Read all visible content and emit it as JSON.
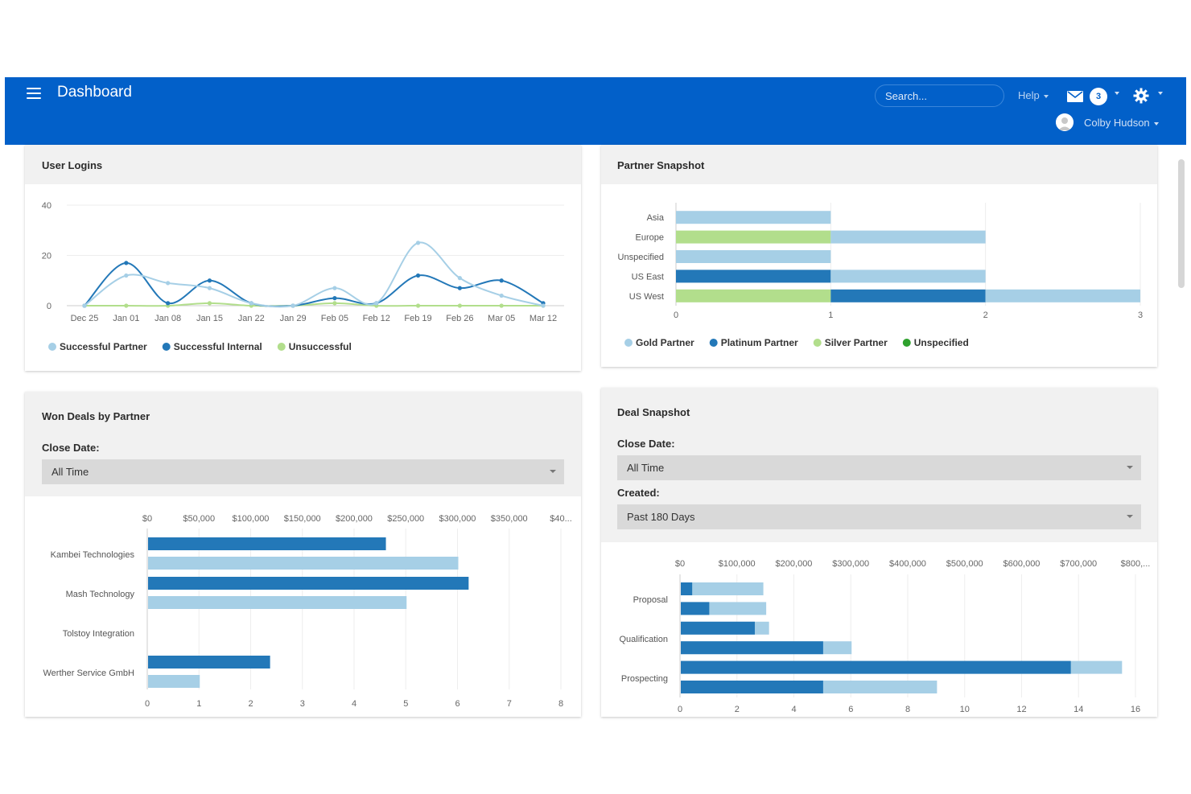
{
  "header": {
    "title": "Dashboard",
    "search_placeholder": "Search...",
    "help_label": "Help",
    "notification_count": "3",
    "user_name": "Colby Hudson"
  },
  "colors": {
    "brand": "#0260c9",
    "light_blue": "#a6cfe6",
    "dark_blue": "#2378b8",
    "light_green": "#b2de8c",
    "dark_green": "#2ea12d"
  },
  "user_logins": {
    "title": "User Logins",
    "chart_data": {
      "type": "line",
      "title": "User Logins",
      "x": [
        "Dec 25",
        "Jan 01",
        "Jan 08",
        "Jan 15",
        "Jan 22",
        "Jan 29",
        "Feb 05",
        "Feb 12",
        "Feb 19",
        "Feb 26",
        "Mar 05",
        "Mar 12"
      ],
      "yticks": [
        0,
        20,
        40
      ],
      "ylim": [
        0,
        40
      ],
      "grid": true,
      "legend": "bottom",
      "series": [
        {
          "name": "Successful Partner",
          "color": "#a6cfe6",
          "values": [
            0,
            12,
            9,
            7,
            1,
            0,
            7,
            1,
            25,
            11,
            4,
            0
          ]
        },
        {
          "name": "Successful Internal",
          "color": "#2378b8",
          "values": [
            0,
            17,
            1,
            10,
            1,
            0,
            3,
            1,
            12,
            7,
            10,
            1
          ]
        },
        {
          "name": "Unsuccessful",
          "color": "#b2de8c",
          "values": [
            0,
            0,
            0,
            1,
            0,
            0,
            1,
            0,
            0,
            0,
            0,
            0
          ]
        }
      ]
    }
  },
  "partner_snapshot": {
    "title": "Partner Snapshot",
    "chart_data": {
      "type": "bar",
      "orientation": "horizontal",
      "stacked": true,
      "title": "Partner Snapshot",
      "categories": [
        "Asia",
        "Europe",
        "Unspecified",
        "US East",
        "US West"
      ],
      "xticks": [
        0,
        1,
        2,
        3
      ],
      "xlim": [
        0,
        3
      ],
      "legend": "bottom",
      "series": [
        {
          "name": "Gold Partner",
          "color": "#a6cfe6",
          "values": [
            1,
            1,
            1,
            1,
            1
          ]
        },
        {
          "name": "Platinum Partner",
          "color": "#2378b8",
          "values": [
            0,
            0,
            0,
            1,
            1
          ]
        },
        {
          "name": "Silver Partner",
          "color": "#b2de8c",
          "values": [
            0,
            1,
            0,
            0,
            1
          ]
        },
        {
          "name": "Unspecified",
          "color": "#2ea12d",
          "values": [
            0,
            0,
            0,
            0,
            0
          ]
        }
      ],
      "stack_order": [
        "Silver Partner",
        "Platinum Partner",
        "Gold Partner",
        "Unspecified"
      ]
    }
  },
  "won_deals": {
    "title": "Won Deals by Partner",
    "close_date_label": "Close Date:",
    "close_date_value": "All Time",
    "chart_data": {
      "type": "bar",
      "orientation": "horizontal",
      "categories": [
        "Kambei Technologies",
        "Mash Technology",
        "Tolstoy Integration",
        "Werther Service GmbH"
      ],
      "top_axis_ticks": [
        "$0",
        "$50,000",
        "$100,000",
        "$150,000",
        "$200,000",
        "$250,000",
        "$300,000",
        "$350,000",
        "$40..."
      ],
      "top_axis_range": [
        0,
        400000
      ],
      "bottom_axis_ticks": [
        0,
        1,
        2,
        3,
        4,
        5,
        6,
        7,
        8
      ],
      "bottom_axis_range": [
        0,
        8
      ],
      "series": [
        {
          "color": "#2378b8",
          "axis": "top",
          "values": [
            230000,
            310000,
            0,
            118000
          ]
        },
        {
          "color": "#a6cfe6",
          "axis": "bottom",
          "values": [
            6,
            5,
            0,
            1
          ]
        }
      ]
    }
  },
  "deal_snapshot": {
    "title": "Deal Snapshot",
    "close_date_label": "Close Date:",
    "close_date_value": "All Time",
    "created_label": "Created:",
    "created_value": "Past 180 Days",
    "chart_data": {
      "type": "bar",
      "orientation": "horizontal",
      "categories": [
        "Proposal",
        "Qualification",
        "Prospecting"
      ],
      "top_axis_ticks": [
        "$0",
        "$100,000",
        "$200,000",
        "$300,000",
        "$400,000",
        "$500,000",
        "$600,000",
        "$700,000",
        "$800,..."
      ],
      "top_axis_range": [
        0,
        800000
      ],
      "bottom_axis_ticks": [
        0,
        2,
        4,
        6,
        8,
        10,
        12,
        14,
        16
      ],
      "bottom_axis_range": [
        0,
        16
      ],
      "rows": [
        {
          "category": "Proposal",
          "dark": 0.4,
          "light": 2.9
        },
        {
          "category": "Proposal",
          "dark": 1.0,
          "light": 3.0
        },
        {
          "category": "Qualification",
          "dark": 2.6,
          "light": 3.1
        },
        {
          "category": "Qualification",
          "dark": 5.0,
          "light": 6.0
        },
        {
          "category": "Prospecting",
          "dark": 13.7,
          "light": 15.5
        },
        {
          "category": "Prospecting",
          "dark": 5.0,
          "light": 9.0
        }
      ]
    }
  }
}
